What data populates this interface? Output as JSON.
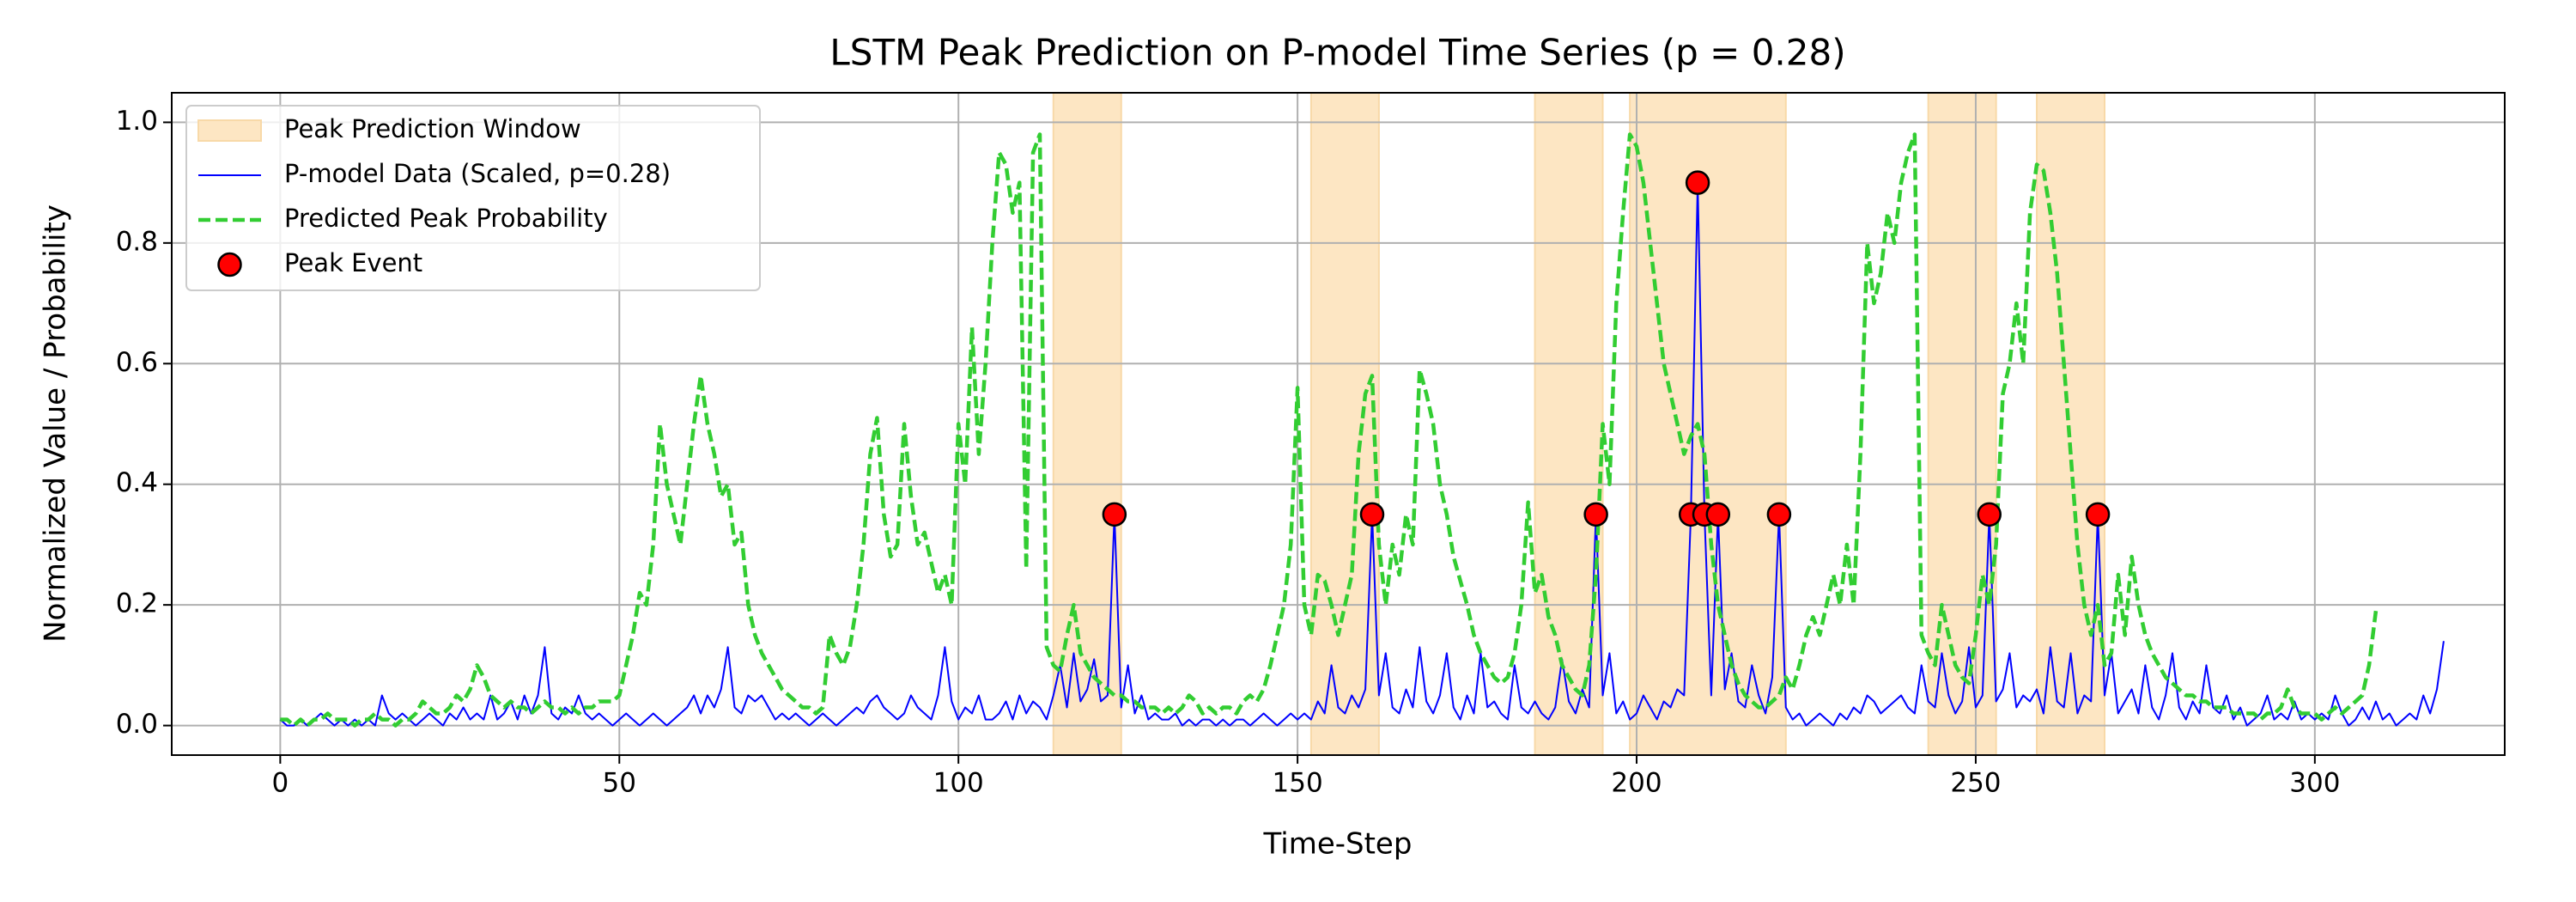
{
  "chart_data": {
    "type": "line",
    "title": "LSTM Peak Prediction on P-model Time Series (p = 0.28)",
    "x_label": "Time-Step",
    "y_label": "Normalized Value / Probability",
    "xlim": [
      -16,
      328
    ],
    "ylim": [
      -0.049,
      1.049
    ],
    "xticks": [
      0,
      50,
      100,
      150,
      200,
      250,
      300
    ],
    "yticks": [
      {
        "value": 0,
        "label": "0.0"
      },
      {
        "value": 0.2,
        "label": "0.2"
      },
      {
        "value": 0.4,
        "label": "0.4"
      },
      {
        "value": 0.6,
        "label": "0.6"
      },
      {
        "value": 0.8,
        "label": "0.8"
      },
      {
        "value": 1,
        "label": "1.0"
      }
    ],
    "grid": true,
    "legend": "upper left",
    "windows": {
      "name": "Peak Prediction Window",
      "color": "#fde6c3",
      "ranges": [
        [
          114,
          124
        ],
        [
          152,
          162
        ],
        [
          185,
          195
        ],
        [
          199,
          222
        ],
        [
          243,
          253
        ],
        [
          259,
          269
        ]
      ]
    },
    "series": [
      {
        "name": "P-model Data (Scaled, p=0.28)",
        "color": "#0000ff",
        "style": "solid",
        "values": [
          0.01,
          0.0,
          0.0,
          0.01,
          0.0,
          0.01,
          0.02,
          0.01,
          0.0,
          0.01,
          0.0,
          0.01,
          0.0,
          0.01,
          0.0,
          0.05,
          0.02,
          0.01,
          0.02,
          0.01,
          0.0,
          0.01,
          0.02,
          0.01,
          0.0,
          0.02,
          0.01,
          0.03,
          0.01,
          0.02,
          0.01,
          0.05,
          0.01,
          0.02,
          0.04,
          0.01,
          0.05,
          0.02,
          0.05,
          0.13,
          0.02,
          0.01,
          0.03,
          0.02,
          0.05,
          0.02,
          0.01,
          0.02,
          0.01,
          0.0,
          0.01,
          0.02,
          0.01,
          0.0,
          0.01,
          0.02,
          0.01,
          0.0,
          0.01,
          0.02,
          0.03,
          0.05,
          0.02,
          0.05,
          0.03,
          0.06,
          0.13,
          0.03,
          0.02,
          0.05,
          0.04,
          0.05,
          0.03,
          0.01,
          0.02,
          0.01,
          0.02,
          0.01,
          0.0,
          0.01,
          0.02,
          0.01,
          0.0,
          0.01,
          0.02,
          0.03,
          0.02,
          0.04,
          0.05,
          0.03,
          0.02,
          0.01,
          0.02,
          0.05,
          0.03,
          0.02,
          0.01,
          0.05,
          0.13,
          0.04,
          0.01,
          0.03,
          0.02,
          0.05,
          0.01,
          0.01,
          0.02,
          0.04,
          0.01,
          0.05,
          0.02,
          0.04,
          0.03,
          0.01,
          0.05,
          0.1,
          0.03,
          0.12,
          0.04,
          0.06,
          0.11,
          0.04,
          0.05,
          0.35,
          0.03,
          0.1,
          0.02,
          0.05,
          0.01,
          0.02,
          0.01,
          0.01,
          0.02,
          0.0,
          0.01,
          0.0,
          0.01,
          0.01,
          0.0,
          0.01,
          0.0,
          0.01,
          0.01,
          0.0,
          0.01,
          0.02,
          0.01,
          0.0,
          0.01,
          0.02,
          0.01,
          0.02,
          0.01,
          0.04,
          0.02,
          0.1,
          0.03,
          0.02,
          0.05,
          0.03,
          0.06,
          0.35,
          0.05,
          0.12,
          0.03,
          0.02,
          0.06,
          0.03,
          0.13,
          0.04,
          0.02,
          0.05,
          0.12,
          0.03,
          0.01,
          0.05,
          0.02,
          0.12,
          0.03,
          0.04,
          0.02,
          0.01,
          0.1,
          0.03,
          0.02,
          0.04,
          0.02,
          0.01,
          0.03,
          0.11,
          0.04,
          0.02,
          0.06,
          0.03,
          0.35,
          0.05,
          0.12,
          0.02,
          0.04,
          0.01,
          0.02,
          0.05,
          0.03,
          0.01,
          0.04,
          0.03,
          0.06,
          0.05,
          0.35,
          0.9,
          0.35,
          0.05,
          0.35,
          0.06,
          0.12,
          0.04,
          0.03,
          0.1,
          0.05,
          0.02,
          0.08,
          0.35,
          0.03,
          0.01,
          0.02,
          0.0,
          0.01,
          0.02,
          0.01,
          0.0,
          0.02,
          0.01,
          0.03,
          0.02,
          0.05,
          0.04,
          0.02,
          0.03,
          0.04,
          0.05,
          0.03,
          0.02,
          0.1,
          0.04,
          0.03,
          0.12,
          0.05,
          0.02,
          0.04,
          0.13,
          0.03,
          0.05,
          0.35,
          0.04,
          0.06,
          0.12,
          0.03,
          0.05,
          0.04,
          0.06,
          0.02,
          0.13,
          0.04,
          0.03,
          0.12,
          0.02,
          0.05,
          0.04,
          0.35,
          0.05,
          0.12,
          0.02,
          0.04,
          0.06,
          0.02,
          0.1,
          0.03,
          0.01,
          0.05,
          0.12,
          0.03,
          0.01,
          0.04,
          0.02,
          0.1,
          0.03,
          0.02,
          0.05,
          0.01,
          0.03,
          0.0,
          0.01,
          0.02,
          0.05,
          0.01,
          0.02,
          0.01,
          0.04,
          0.01,
          0.02,
          0.01,
          0.02,
          0.01,
          0.05,
          0.02,
          0.0,
          0.01,
          0.03,
          0.01,
          0.04,
          0.01,
          0.02,
          0.0,
          0.01,
          0.02,
          0.01,
          0.05,
          0.02,
          0.06,
          0.14
        ]
      },
      {
        "name": "Predicted Peak Probability",
        "color": "#32cd32",
        "style": "dashed",
        "values": [
          0.01,
          0.01,
          0.0,
          0.01,
          0.0,
          0.01,
          0.01,
          0.02,
          0.01,
          0.01,
          0.01,
          0.0,
          0.01,
          0.01,
          0.02,
          0.01,
          0.01,
          0.0,
          0.01,
          0.01,
          0.02,
          0.04,
          0.03,
          0.02,
          0.02,
          0.03,
          0.05,
          0.04,
          0.06,
          0.1,
          0.08,
          0.05,
          0.04,
          0.03,
          0.04,
          0.03,
          0.03,
          0.02,
          0.03,
          0.04,
          0.03,
          0.03,
          0.02,
          0.03,
          0.02,
          0.03,
          0.03,
          0.04,
          0.04,
          0.04,
          0.05,
          0.1,
          0.15,
          0.22,
          0.2,
          0.3,
          0.5,
          0.4,
          0.35,
          0.3,
          0.4,
          0.5,
          0.58,
          0.5,
          0.45,
          0.38,
          0.4,
          0.3,
          0.32,
          0.2,
          0.15,
          0.12,
          0.1,
          0.08,
          0.06,
          0.05,
          0.04,
          0.03,
          0.03,
          0.02,
          0.03,
          0.15,
          0.12,
          0.1,
          0.13,
          0.2,
          0.3,
          0.45,
          0.51,
          0.35,
          0.28,
          0.3,
          0.5,
          0.38,
          0.3,
          0.32,
          0.27,
          0.22,
          0.25,
          0.2,
          0.5,
          0.4,
          0.66,
          0.45,
          0.6,
          0.8,
          0.95,
          0.93,
          0.85,
          0.9,
          0.26,
          0.95,
          0.98,
          0.13,
          0.1,
          0.09,
          0.15,
          0.2,
          0.12,
          0.1,
          0.08,
          0.07,
          0.06,
          0.05,
          0.05,
          0.04,
          0.04,
          0.03,
          0.03,
          0.03,
          0.02,
          0.03,
          0.02,
          0.03,
          0.05,
          0.04,
          0.02,
          0.03,
          0.02,
          0.03,
          0.03,
          0.02,
          0.04,
          0.05,
          0.04,
          0.06,
          0.1,
          0.15,
          0.2,
          0.3,
          0.56,
          0.2,
          0.15,
          0.25,
          0.24,
          0.2,
          0.15,
          0.2,
          0.25,
          0.45,
          0.55,
          0.58,
          0.3,
          0.2,
          0.3,
          0.25,
          0.35,
          0.3,
          0.59,
          0.55,
          0.5,
          0.4,
          0.35,
          0.28,
          0.24,
          0.2,
          0.15,
          0.12,
          0.1,
          0.08,
          0.07,
          0.08,
          0.12,
          0.2,
          0.37,
          0.22,
          0.25,
          0.18,
          0.15,
          0.1,
          0.08,
          0.06,
          0.05,
          0.1,
          0.25,
          0.5,
          0.4,
          0.7,
          0.85,
          0.98,
          0.96,
          0.9,
          0.8,
          0.7,
          0.6,
          0.55,
          0.5,
          0.45,
          0.48,
          0.5,
          0.45,
          0.3,
          0.2,
          0.15,
          0.1,
          0.07,
          0.05,
          0.04,
          0.03,
          0.03,
          0.04,
          0.05,
          0.08,
          0.06,
          0.1,
          0.15,
          0.18,
          0.15,
          0.2,
          0.25,
          0.2,
          0.3,
          0.2,
          0.45,
          0.8,
          0.7,
          0.75,
          0.85,
          0.8,
          0.9,
          0.95,
          0.98,
          0.15,
          0.12,
          0.1,
          0.2,
          0.15,
          0.1,
          0.08,
          0.07,
          0.15,
          0.25,
          0.2,
          0.3,
          0.55,
          0.6,
          0.7,
          0.6,
          0.85,
          0.93,
          0.92,
          0.85,
          0.75,
          0.6,
          0.45,
          0.3,
          0.2,
          0.15,
          0.2,
          0.1,
          0.12,
          0.25,
          0.15,
          0.28,
          0.2,
          0.15,
          0.12,
          0.1,
          0.08,
          0.07,
          0.06,
          0.05,
          0.05,
          0.04,
          0.04,
          0.03,
          0.03,
          0.03,
          0.02,
          0.02,
          0.02,
          0.02,
          0.01,
          0.02,
          0.02,
          0.03,
          0.06,
          0.03,
          0.02,
          0.02,
          0.02,
          0.01,
          0.02,
          0.03,
          0.02,
          0.03,
          0.04,
          0.05,
          0.1,
          0.19
        ]
      },
      {
        "name": "Peak Event",
        "type": "scatter",
        "color": "#ff0000",
        "x": [
          123,
          161,
          194,
          208,
          209,
          210,
          212,
          221,
          252,
          268
        ],
        "values": [
          0.35,
          0.35,
          0.35,
          0.35,
          0.9,
          0.35,
          0.35,
          0.35,
          0.35,
          0.35
        ]
      }
    ]
  }
}
